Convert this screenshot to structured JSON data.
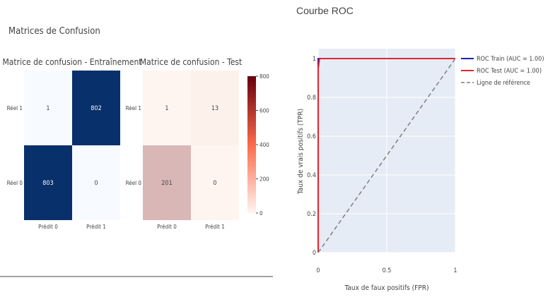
{
  "left_panel": {
    "title": "Matrices de Confusion",
    "colorbar_ticks": [
      "800",
      "600",
      "400",
      "200",
      "0"
    ]
  },
  "right_panel": {
    "title": "Courbe ROC"
  },
  "colors": {
    "blue_low": "#f7fbff",
    "blue_high": "#08306b",
    "red_low": "#fff5f0",
    "red_high": "#67000d",
    "roc_train": "#1f1fb4",
    "roc_test": "#e3262f",
    "reference": "#7f7f7f",
    "plot_bg": "#e5ecf6"
  },
  "chart_data": [
    {
      "type": "heatmap",
      "title": "Matrice de confusion - Entraînement",
      "x": [
        "Prédit 0",
        "Prédit 1"
      ],
      "y": [
        "Réel 1",
        "Réel 0"
      ],
      "z": [
        [
          1,
          802
        ],
        [
          803,
          0
        ]
      ],
      "labels": [
        [
          "1",
          "802"
        ],
        [
          "803",
          "0"
        ]
      ],
      "colorscale": "Blues"
    },
    {
      "type": "heatmap",
      "title": "Matrice de confusion - Test",
      "x": [
        "Prédit 0",
        "Prédit 1"
      ],
      "y": [
        "Réel 1",
        "Réel 0"
      ],
      "z": [
        [
          1,
          13
        ],
        [
          201,
          0
        ]
      ],
      "labels": [
        [
          "1",
          "13"
        ],
        [
          "201",
          "0"
        ]
      ],
      "colorscale": "Reds",
      "zlim": [
        0,
        800
      ]
    },
    {
      "type": "line",
      "xlabel": "Taux de faux positifs (FPR)",
      "ylabel": "Taux de vrais positifs (TPR)",
      "xlim": [
        0,
        1
      ],
      "ylim": [
        0,
        1
      ],
      "xticks": [
        "0",
        "0.5",
        "1"
      ],
      "yticks": [
        "0",
        "0.2",
        "0.4",
        "0.6",
        "0.8",
        "1"
      ],
      "grid": true,
      "legend_position": "top-right",
      "series": [
        {
          "name": "ROC Train (AUC = 1.00)",
          "x": [
            0,
            0,
            1
          ],
          "y": [
            0,
            1,
            1
          ],
          "style": "solid",
          "color": "#1f1fb4"
        },
        {
          "name": "ROC Test (AUC = 1.00)",
          "x": [
            0,
            0,
            0.01,
            1
          ],
          "y": [
            0,
            0.95,
            1,
            1
          ],
          "style": "solid",
          "color": "#e3262f"
        },
        {
          "name": "Ligne de référence",
          "x": [
            0,
            1
          ],
          "y": [
            0,
            1
          ],
          "style": "dash",
          "color": "#7f7f7f"
        }
      ]
    }
  ]
}
